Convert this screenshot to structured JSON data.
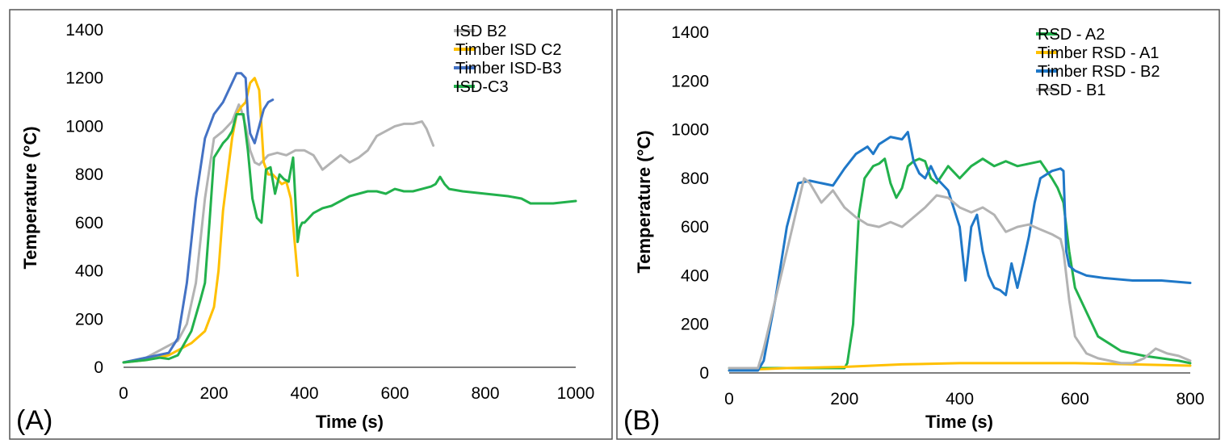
{
  "chart_data": [
    {
      "type": "line",
      "panel_label": "(A)",
      "xlabel": "Time (s)",
      "ylabel": "Temperature (°C)",
      "xlim": [
        0,
        1000
      ],
      "ylim": [
        0,
        1400
      ],
      "xticks": [
        0,
        200,
        400,
        600,
        800,
        1000
      ],
      "yticks": [
        0,
        200,
        400,
        600,
        800,
        1000,
        1200,
        1400
      ],
      "grid": false,
      "legend_position": "top-right",
      "series": [
        {
          "name": "ISD B2",
          "color": "#b3b3b3",
          "x": [
            0,
            50,
            80,
            100,
            120,
            140,
            160,
            180,
            200,
            220,
            240,
            255,
            260,
            270,
            280,
            290,
            300,
            320,
            340,
            360,
            380,
            400,
            420,
            440,
            460,
            480,
            500,
            520,
            540,
            560,
            580,
            600,
            620,
            640,
            660,
            670,
            685
          ],
          "y": [
            20,
            40,
            70,
            90,
            110,
            180,
            350,
            700,
            950,
            980,
            1020,
            1090,
            1070,
            1000,
            900,
            850,
            840,
            880,
            890,
            880,
            900,
            900,
            880,
            820,
            850,
            880,
            850,
            870,
            900,
            960,
            980,
            1000,
            1010,
            1010,
            1020,
            990,
            920
          ]
        },
        {
          "name": "Timber ISD C2",
          "color": "#ffc000",
          "x": [
            0,
            50,
            100,
            150,
            180,
            200,
            210,
            220,
            240,
            250,
            260,
            270,
            280,
            290,
            300,
            305,
            310,
            320,
            330,
            340,
            350,
            360,
            370,
            385
          ],
          "y": [
            20,
            30,
            50,
            100,
            150,
            250,
            400,
            650,
            950,
            1050,
            1080,
            1100,
            1180,
            1200,
            1150,
            1000,
            850,
            800,
            800,
            780,
            760,
            770,
            700,
            380
          ]
        },
        {
          "name": "Timber ISD-B3",
          "color": "#4472c4",
          "x": [
            0,
            50,
            100,
            120,
            140,
            160,
            180,
            200,
            220,
            240,
            250,
            260,
            270,
            275,
            280,
            290,
            300,
            310,
            320,
            330
          ],
          "y": [
            20,
            40,
            60,
            120,
            350,
            700,
            950,
            1050,
            1100,
            1180,
            1220,
            1220,
            1200,
            1050,
            970,
            930,
            1000,
            1070,
            1100,
            1110
          ]
        },
        {
          "name": "ISD-C3",
          "color": "#22b14c",
          "x": [
            0,
            50,
            80,
            100,
            120,
            150,
            170,
            180,
            190,
            200,
            210,
            220,
            230,
            240,
            250,
            265,
            275,
            285,
            295,
            305,
            315,
            325,
            335,
            345,
            355,
            365,
            375,
            385,
            390,
            395,
            400,
            420,
            440,
            460,
            480,
            500,
            520,
            540,
            560,
            580,
            600,
            620,
            640,
            660,
            680,
            690,
            700,
            710,
            720,
            750,
            800,
            850,
            880,
            900,
            950,
            1000
          ],
          "y": [
            20,
            30,
            40,
            35,
            50,
            150,
            280,
            350,
            600,
            870,
            900,
            930,
            950,
            980,
            1050,
            1050,
            900,
            700,
            620,
            600,
            820,
            830,
            720,
            800,
            780,
            770,
            870,
            520,
            580,
            600,
            600,
            640,
            660,
            670,
            690,
            710,
            720,
            730,
            730,
            720,
            740,
            730,
            730,
            740,
            750,
            760,
            790,
            760,
            740,
            730,
            720,
            710,
            700,
            680,
            680,
            690
          ]
        }
      ]
    },
    {
      "type": "line",
      "panel_label": "(B)",
      "xlabel": "Time (s)",
      "ylabel": "Temperature (°C)",
      "xlim": [
        0,
        800
      ],
      "ylim": [
        0,
        1400
      ],
      "xticks": [
        0,
        200,
        400,
        600,
        800
      ],
      "yticks": [
        0,
        200,
        400,
        600,
        800,
        1000,
        1200,
        1400
      ],
      "grid": false,
      "legend_position": "top-right",
      "series": [
        {
          "name": "RSD - A2",
          "color": "#22b14c",
          "x": [
            0,
            100,
            200,
            205,
            215,
            225,
            235,
            250,
            260,
            270,
            280,
            290,
            300,
            310,
            320,
            330,
            340,
            350,
            360,
            380,
            400,
            420,
            440,
            460,
            480,
            500,
            520,
            540,
            560,
            570,
            580,
            590,
            600,
            620,
            640,
            660,
            680,
            700,
            720,
            750,
            780,
            800
          ],
          "y": [
            20,
            20,
            20,
            40,
            200,
            650,
            800,
            850,
            860,
            880,
            780,
            720,
            760,
            850,
            870,
            880,
            870,
            800,
            780,
            850,
            800,
            850,
            880,
            850,
            870,
            850,
            860,
            870,
            800,
            760,
            700,
            500,
            350,
            250,
            150,
            120,
            90,
            80,
            70,
            60,
            50,
            40
          ]
        },
        {
          "name": "Timber RSD - A1",
          "color": "#ffc000",
          "x": [
            0,
            100,
            200,
            300,
            400,
            500,
            600,
            700,
            800
          ],
          "y": [
            10,
            20,
            25,
            35,
            40,
            40,
            40,
            35,
            30
          ]
        },
        {
          "name": "Timber RSD - B2",
          "color": "#1f78c8",
          "x": [
            0,
            50,
            60,
            80,
            100,
            120,
            140,
            160,
            180,
            200,
            220,
            240,
            250,
            260,
            280,
            300,
            310,
            320,
            330,
            340,
            350,
            360,
            380,
            400,
            410,
            420,
            430,
            440,
            450,
            460,
            470,
            480,
            490,
            500,
            510,
            520,
            530,
            540,
            560,
            575,
            580,
            585,
            590,
            600,
            620,
            650,
            700,
            750,
            800
          ],
          "y": [
            10,
            10,
            50,
            300,
            600,
            780,
            790,
            780,
            770,
            840,
            900,
            930,
            900,
            940,
            970,
            960,
            990,
            870,
            820,
            800,
            850,
            800,
            750,
            600,
            380,
            600,
            650,
            500,
            400,
            350,
            340,
            320,
            450,
            350,
            450,
            560,
            700,
            800,
            830,
            840,
            830,
            500,
            440,
            420,
            400,
            390,
            380,
            380,
            370
          ]
        },
        {
          "name": "RSD - B1",
          "color": "#b3b3b3",
          "x": [
            0,
            50,
            60,
            80,
            100,
            120,
            130,
            140,
            160,
            180,
            200,
            220,
            240,
            260,
            280,
            300,
            320,
            340,
            360,
            380,
            400,
            420,
            440,
            460,
            480,
            500,
            520,
            540,
            560,
            575,
            580,
            590,
            600,
            620,
            640,
            660,
            680,
            700,
            720,
            740,
            760,
            780,
            800
          ],
          "y": [
            20,
            20,
            100,
            300,
            500,
            700,
            800,
            780,
            700,
            750,
            680,
            640,
            610,
            600,
            620,
            600,
            640,
            680,
            730,
            720,
            680,
            660,
            680,
            650,
            580,
            600,
            610,
            590,
            570,
            550,
            500,
            300,
            150,
            80,
            60,
            50,
            40,
            40,
            60,
            100,
            80,
            70,
            50
          ]
        }
      ]
    }
  ]
}
